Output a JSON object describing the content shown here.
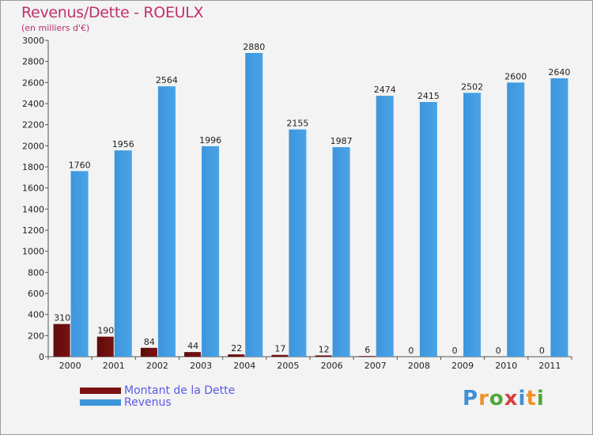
{
  "chart_data": {
    "type": "bar",
    "title": "Revenus/Dette - ROEULX",
    "subtitle": "(en milliers d'€)",
    "categories": [
      "2000",
      "2001",
      "2002",
      "2003",
      "2004",
      "2005",
      "2006",
      "2007",
      "2008",
      "2009",
      "2010",
      "2011"
    ],
    "series": [
      {
        "name": "Montant de la Dette",
        "values": [
          310,
          190,
          84,
          44,
          22,
          17,
          12,
          6,
          0,
          0,
          0,
          0
        ],
        "color": "#7a1212"
      },
      {
        "name": "Revenus",
        "values": [
          1760,
          1956,
          2564,
          1996,
          2880,
          2155,
          1987,
          2474,
          2415,
          2502,
          2600,
          2640
        ],
        "color": "#3d96dc"
      }
    ],
    "yticks": [
      0,
      200,
      400,
      600,
      800,
      1000,
      1200,
      1400,
      1600,
      1800,
      2000,
      2200,
      2400,
      2600,
      2800,
      3000
    ],
    "ylim": [
      0,
      3000
    ],
    "grid": false,
    "legend": "bottom-left"
  },
  "brand": {
    "letters": [
      "P",
      "r",
      "o",
      "x",
      "i",
      "t",
      "i"
    ],
    "colors": [
      "#3d8fd6",
      "#f0902a",
      "#4da83a",
      "#d93d3d",
      "#3d8fd6",
      "#f0902a",
      "#4da83a"
    ]
  }
}
